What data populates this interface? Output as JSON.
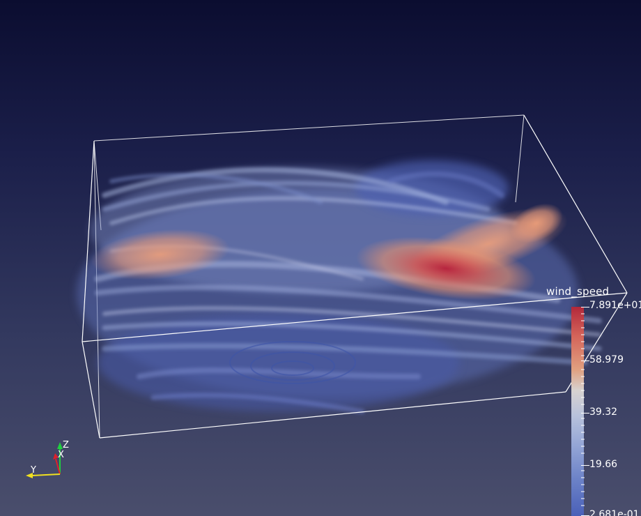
{
  "scene": {
    "background_top": "#0b0d30",
    "background_bottom": "#4a4e6c",
    "outline_color": "#ffffff"
  },
  "colorbar": {
    "title": "wind_speed",
    "labels": [
      "7.891e+01",
      "58.979",
      "39.32",
      "19.66",
      "2.681e-01"
    ],
    "max_color": "#b2283a",
    "min_color": "#4a60b8"
  },
  "orientation_axes": {
    "x_label": "X",
    "y_label": "Y",
    "z_label": "Z",
    "x_color": "#e0202a",
    "y_color": "#f0e020",
    "z_color": "#20d040"
  }
}
